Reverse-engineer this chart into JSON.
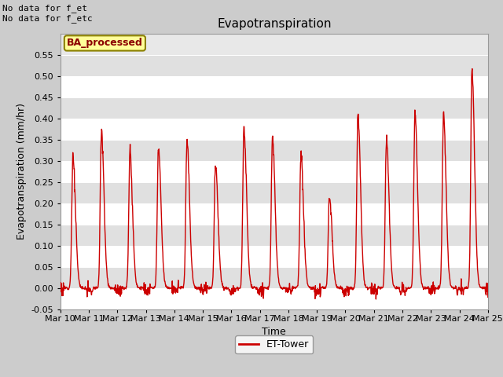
{
  "title": "Evapotranspiration",
  "xlabel": "Time",
  "ylabel": "Evapotranspiration (mm/hr)",
  "ylim": [
    -0.05,
    0.6
  ],
  "yticks": [
    -0.05,
    0.0,
    0.05,
    0.1,
    0.15,
    0.2,
    0.25,
    0.3,
    0.35,
    0.4,
    0.45,
    0.5,
    0.55
  ],
  "line_color": "#cc0000",
  "line_width": 1.0,
  "fig_bg_color": "#cccccc",
  "plot_bg_color": "#e8e8e8",
  "annotation_top_left": "No data for f_et\nNo data for f_etc",
  "legend_label": "ET-Tower",
  "ba_label": "BA_processed",
  "ba_label_color": "#8B0000",
  "ba_bg": "#ffff99",
  "ba_edge": "#8B8000",
  "day_peaks": [
    0.31,
    0.37,
    0.32,
    0.33,
    0.35,
    0.29,
    0.38,
    0.35,
    0.31,
    0.22,
    0.41,
    0.35,
    0.41,
    0.41,
    0.52
  ],
  "xtick_labels": [
    "Mar 10",
    "Mar 11",
    "Mar 12",
    "Mar 13",
    "Mar 14",
    "Mar 15",
    "Mar 16",
    "Mar 17",
    "Mar 18",
    "Mar 19",
    "Mar 20",
    "Mar 21",
    "Mar 22",
    "Mar 23",
    "Mar 24",
    "Mar 25"
  ],
  "figsize": [
    6.4,
    4.8
  ],
  "dpi": 100,
  "title_fontsize": 11,
  "label_fontsize": 9,
  "tick_fontsize": 8
}
